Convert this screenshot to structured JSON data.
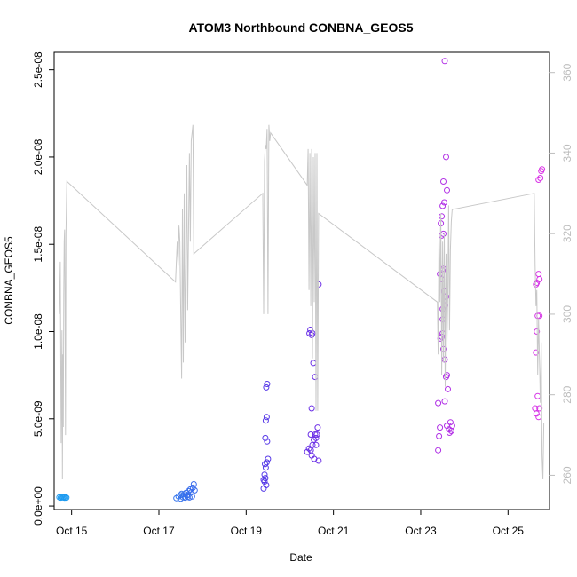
{
  "chart_data": {
    "type": "scatter",
    "title": "ATOM3 Northbound CONBNA_GEOS5",
    "xlabel": "Date",
    "ylabel": "CONBNA_GEOS5",
    "xlim_days": [
      14.6,
      25.95
    ],
    "ylim": [
      -2e-10,
      2.6e-08
    ],
    "y2lim": [
      251.5,
      365.0
    ],
    "x_ticks": [
      {
        "day": 15,
        "label": "Oct 15"
      },
      {
        "day": 17,
        "label": "Oct 17"
      },
      {
        "day": 19,
        "label": "Oct 19"
      },
      {
        "day": 21,
        "label": "Oct 21"
      },
      {
        "day": 23,
        "label": "Oct 23"
      },
      {
        "day": 25,
        "label": "Oct 25"
      }
    ],
    "y_ticks": [
      {
        "value": 0,
        "label": "0.0e+00"
      },
      {
        "value": 5e-09,
        "label": "5.0e-09"
      },
      {
        "value": 1e-08,
        "label": "1.0e-08"
      },
      {
        "value": 1.5e-08,
        "label": "1.5e-08"
      },
      {
        "value": 2e-08,
        "label": "2.0e-08"
      },
      {
        "value": 2.5e-08,
        "label": "2.5e-08"
      }
    ],
    "y2_ticks": [
      {
        "value": 260,
        "label": "260"
      },
      {
        "value": 280,
        "label": "280"
      },
      {
        "value": 300,
        "label": "300"
      },
      {
        "value": 320,
        "label": "320"
      },
      {
        "value": 340,
        "label": "340"
      },
      {
        "value": 360,
        "label": "360"
      }
    ],
    "colors": {
      "line": "#c8c8c8",
      "axis": "#000000",
      "right_axis": "#bdbdbd",
      "color_start": "#1e9bf0",
      "color_mid": "#5a2ee6",
      "color_end": "#e033e6"
    },
    "scatter_points": [
      [
        14.72,
        5e-10,
        0.0
      ],
      [
        14.75,
        4.8e-10,
        0.0
      ],
      [
        14.78,
        5.2e-10,
        0.0
      ],
      [
        14.8,
        4.9e-10,
        0.0
      ],
      [
        14.82,
        5.1e-10,
        0.0
      ],
      [
        14.84,
        4.7e-10,
        0.0
      ],
      [
        14.86,
        5e-10,
        0.0
      ],
      [
        14.88,
        4.8e-10,
        0.0
      ],
      [
        17.4,
        4.5e-10,
        0.18
      ],
      [
        17.45,
        5.5e-10,
        0.18
      ],
      [
        17.5,
        6.2e-10,
        0.19
      ],
      [
        17.52,
        7e-10,
        0.19
      ],
      [
        17.55,
        5e-10,
        0.19
      ],
      [
        17.58,
        6.8e-10,
        0.19
      ],
      [
        17.6,
        4.8e-10,
        0.2
      ],
      [
        17.62,
        7.5e-10,
        0.2
      ],
      [
        17.64,
        6e-10,
        0.2
      ],
      [
        17.66,
        5.2e-10,
        0.2
      ],
      [
        17.68,
        8.5e-10,
        0.21
      ],
      [
        17.7,
        4.9e-10,
        0.21
      ],
      [
        17.72,
        9.5e-10,
        0.21
      ],
      [
        17.74,
        7.8e-10,
        0.21
      ],
      [
        17.76,
        5.5e-10,
        0.22
      ],
      [
        17.78,
        1.05e-09,
        0.22
      ],
      [
        17.8,
        1.25e-09,
        0.22
      ],
      [
        17.82,
        9e-10,
        0.22
      ],
      [
        17.5,
        4.2e-10,
        0.19
      ],
      [
        17.66,
        6.5e-10,
        0.2
      ],
      [
        19.4,
        1e-09,
        0.45
      ],
      [
        19.42,
        1.4e-09,
        0.45
      ],
      [
        19.44,
        1.6e-09,
        0.45
      ],
      [
        19.46,
        1.2e-09,
        0.46
      ],
      [
        19.42,
        1.8e-09,
        0.45
      ],
      [
        19.45,
        2.2e-09,
        0.46
      ],
      [
        19.47,
        2.5e-09,
        0.46
      ],
      [
        19.5,
        2.7e-09,
        0.46
      ],
      [
        19.44,
        3.9e-09,
        0.46
      ],
      [
        19.48,
        3.7e-09,
        0.46
      ],
      [
        19.45,
        4.9e-09,
        0.46
      ],
      [
        19.47,
        5.1e-09,
        0.46
      ],
      [
        19.46,
        6.8e-09,
        0.46
      ],
      [
        19.48,
        7e-09,
        0.46
      ],
      [
        19.43,
        2.4e-09,
        0.45
      ],
      [
        19.4,
        1.5e-09,
        0.45
      ],
      [
        20.4,
        3.1e-09,
        0.55
      ],
      [
        20.44,
        3.3e-09,
        0.55
      ],
      [
        20.48,
        3.2e-09,
        0.56
      ],
      [
        20.5,
        2.9e-09,
        0.56
      ],
      [
        20.52,
        3.5e-09,
        0.56
      ],
      [
        20.55,
        3.8e-09,
        0.56
      ],
      [
        20.58,
        4.1e-09,
        0.57
      ],
      [
        20.6,
        3.9e-09,
        0.57
      ],
      [
        20.62,
        4.1e-09,
        0.57
      ],
      [
        20.64,
        4.5e-09,
        0.57
      ],
      [
        20.66,
        2.6e-09,
        0.57
      ],
      [
        20.56,
        2.7e-09,
        0.56
      ],
      [
        20.48,
        4.1e-09,
        0.56
      ],
      [
        20.5,
        5.6e-09,
        0.56
      ],
      [
        20.54,
        8.2e-09,
        0.56
      ],
      [
        20.58,
        7.4e-09,
        0.57
      ],
      [
        20.45,
        9.9e-09,
        0.55
      ],
      [
        20.47,
        1.01e-08,
        0.55
      ],
      [
        20.5,
        9.8e-09,
        0.56
      ],
      [
        20.52,
        9.9e-09,
        0.56
      ],
      [
        20.66,
        1.27e-08,
        0.57
      ],
      [
        20.6,
        3.5e-09,
        0.57
      ],
      [
        23.4,
        3.2e-09,
        0.82
      ],
      [
        23.42,
        4e-09,
        0.82
      ],
      [
        23.44,
        4.5e-09,
        0.82
      ],
      [
        23.4,
        5.9e-09,
        0.82
      ],
      [
        23.45,
        9.6e-09,
        0.82
      ],
      [
        23.48,
        9.7e-09,
        0.82
      ],
      [
        23.5,
        9.9e-09,
        0.82
      ],
      [
        23.52,
        9e-09,
        0.83
      ],
      [
        23.55,
        8.4e-09,
        0.83
      ],
      [
        23.58,
        7.4e-09,
        0.83
      ],
      [
        23.6,
        7.5e-09,
        0.83
      ],
      [
        23.62,
        6.7e-09,
        0.83
      ],
      [
        23.55,
        6e-09,
        0.83
      ],
      [
        23.6,
        4.6e-09,
        0.83
      ],
      [
        23.65,
        4.4e-09,
        0.83
      ],
      [
        23.68,
        4.8e-09,
        0.83
      ],
      [
        23.7,
        4.3e-09,
        0.84
      ],
      [
        23.72,
        4.6e-09,
        0.84
      ],
      [
        23.66,
        4.2e-09,
        0.83
      ],
      [
        23.44,
        1.33e-08,
        0.82
      ],
      [
        23.48,
        1.3e-08,
        0.82
      ],
      [
        23.5,
        1.35e-08,
        0.82
      ],
      [
        23.52,
        1.36e-08,
        0.83
      ],
      [
        23.54,
        1.23e-08,
        0.83
      ],
      [
        23.56,
        1.2e-08,
        0.83
      ],
      [
        23.58,
        1.2e-08,
        0.83
      ],
      [
        23.5,
        1.07e-08,
        0.82
      ],
      [
        23.48,
        1.55e-08,
        0.82
      ],
      [
        23.52,
        1.56e-08,
        0.83
      ],
      [
        23.46,
        1.62e-08,
        0.82
      ],
      [
        23.48,
        1.66e-08,
        0.82
      ],
      [
        23.5,
        1.72e-08,
        0.82
      ],
      [
        23.54,
        1.74e-08,
        0.83
      ],
      [
        23.6,
        1.81e-08,
        0.83
      ],
      [
        23.52,
        1.86e-08,
        0.83
      ],
      [
        23.58,
        2e-08,
        0.83
      ],
      [
        23.55,
        2.55e-08,
        0.83
      ],
      [
        23.56,
        1.15e-08,
        0.83
      ],
      [
        23.5,
        1.13e-08,
        0.82
      ],
      [
        25.62,
        5.6e-09,
        0.96
      ],
      [
        25.65,
        5.3e-09,
        0.96
      ],
      [
        25.68,
        6.3e-09,
        0.96
      ],
      [
        25.7,
        5.1e-09,
        0.97
      ],
      [
        25.72,
        5.6e-09,
        0.97
      ],
      [
        25.64,
        8.8e-09,
        0.96
      ],
      [
        25.66,
        1e-08,
        0.96
      ],
      [
        25.68,
        1.09e-08,
        0.96
      ],
      [
        25.72,
        1.09e-08,
        0.97
      ],
      [
        25.64,
        1.27e-08,
        0.96
      ],
      [
        25.66,
        1.28e-08,
        0.96
      ],
      [
        25.7,
        1.33e-08,
        0.97
      ],
      [
        25.72,
        1.3e-08,
        0.97
      ],
      [
        25.7,
        1.87e-08,
        0.97
      ],
      [
        25.74,
        1.88e-08,
        0.97
      ],
      [
        25.76,
        1.92e-08,
        0.98
      ],
      [
        25.78,
        1.93e-08,
        0.98
      ]
    ],
    "line_series": [
      [
        14.72,
        300
      ],
      [
        14.74,
        313
      ],
      [
        14.76,
        268
      ],
      [
        14.78,
        296
      ],
      [
        14.79,
        259
      ],
      [
        14.8,
        290
      ],
      [
        14.81,
        272
      ],
      [
        14.82,
        305
      ],
      [
        14.83,
        318
      ],
      [
        14.84,
        321
      ],
      [
        14.85,
        300
      ],
      [
        14.86,
        270
      ],
      [
        14.87,
        320
      ],
      [
        14.89,
        333
      ],
      [
        17.38,
        308
      ],
      [
        17.42,
        318
      ],
      [
        17.44,
        312
      ],
      [
        17.46,
        322
      ],
      [
        17.48,
        318
      ],
      [
        17.5,
        300
      ],
      [
        17.52,
        284
      ],
      [
        17.54,
        326
      ],
      [
        17.56,
        288
      ],
      [
        17.58,
        330
      ],
      [
        17.6,
        293
      ],
      [
        17.62,
        313
      ],
      [
        17.64,
        337
      ],
      [
        17.66,
        301
      ],
      [
        17.7,
        340
      ],
      [
        17.72,
        318
      ],
      [
        17.74,
        343
      ],
      [
        17.76,
        345
      ],
      [
        17.78,
        347
      ],
      [
        17.8,
        315
      ],
      [
        19.38,
        330
      ],
      [
        19.4,
        300
      ],
      [
        19.42,
        338
      ],
      [
        19.44,
        342
      ],
      [
        19.46,
        341
      ],
      [
        19.48,
        346
      ],
      [
        19.5,
        300
      ],
      [
        19.52,
        347
      ],
      [
        19.54,
        343
      ],
      [
        19.56,
        345
      ],
      [
        20.4,
        332
      ],
      [
        20.42,
        341
      ],
      [
        20.44,
        306
      ],
      [
        20.46,
        340
      ],
      [
        20.48,
        302
      ],
      [
        20.5,
        341
      ],
      [
        20.52,
        289
      ],
      [
        20.54,
        339
      ],
      [
        20.56,
        303
      ],
      [
        20.58,
        340
      ],
      [
        20.6,
        276
      ],
      [
        20.62,
        340
      ],
      [
        20.64,
        276
      ],
      [
        20.66,
        325
      ],
      [
        23.38,
        303
      ],
      [
        23.4,
        290
      ],
      [
        23.42,
        322
      ],
      [
        23.44,
        303
      ],
      [
        23.46,
        325
      ],
      [
        23.48,
        285
      ],
      [
        23.5,
        318
      ],
      [
        23.52,
        288
      ],
      [
        23.54,
        320
      ],
      [
        23.56,
        282
      ],
      [
        23.58,
        315
      ],
      [
        23.6,
        293
      ],
      [
        23.62,
        305
      ],
      [
        23.64,
        327
      ],
      [
        23.66,
        296
      ],
      [
        23.68,
        316
      ],
      [
        23.7,
        323
      ],
      [
        23.72,
        326
      ],
      [
        25.6,
        330
      ],
      [
        25.62,
        312
      ],
      [
        25.64,
        302
      ],
      [
        25.66,
        306
      ],
      [
        25.68,
        285
      ],
      [
        25.7,
        299
      ],
      [
        25.72,
        289
      ],
      [
        25.74,
        278
      ],
      [
        25.76,
        293
      ],
      [
        25.78,
        265
      ],
      [
        25.8,
        259
      ],
      [
        25.82,
        273
      ]
    ]
  }
}
